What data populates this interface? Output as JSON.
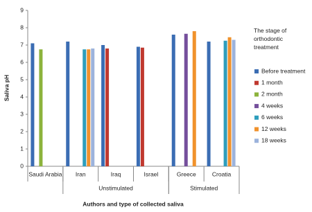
{
  "chart_data": {
    "type": "bar",
    "y_label": "Saliva pH",
    "x_label": "Authors and type of collected saliva",
    "legend_title": "The stage of orthodontic treatment",
    "legend_position": "right",
    "categories": [
      "Saudi Arabia",
      "Iran",
      "Iraq",
      "Israel",
      "Greece",
      "Croatia"
    ],
    "groups": [
      {
        "label": "Unstimulated",
        "from": "Iran",
        "to": "Israel"
      },
      {
        "label": "Stimulated",
        "from": "Greece",
        "to": "Croatia"
      }
    ],
    "series": [
      {
        "name": "Before treatment",
        "color": "#3b6db3",
        "values": [
          7.1,
          7.2,
          7.0,
          6.9,
          7.6,
          7.2
        ]
      },
      {
        "name": "1 month",
        "color": "#c0392f",
        "values": [
          null,
          null,
          6.8,
          6.85,
          null,
          null
        ]
      },
      {
        "name": "2 month",
        "color": "#8cb33c",
        "values": [
          6.75,
          null,
          null,
          null,
          null,
          null
        ]
      },
      {
        "name": "4 weeks",
        "color": "#754f9c",
        "values": [
          null,
          null,
          null,
          null,
          7.65,
          null
        ]
      },
      {
        "name": "6 weeks",
        "color": "#2e9ebc",
        "values": [
          null,
          6.75,
          null,
          null,
          null,
          7.25
        ]
      },
      {
        "name": "12 weeks",
        "color": "#f0922c",
        "values": [
          null,
          6.75,
          null,
          null,
          7.8,
          7.45
        ]
      },
      {
        "name": "18 weeks",
        "color": "#9cb3dc",
        "values": [
          null,
          6.8,
          null,
          null,
          null,
          7.3
        ]
      }
    ],
    "ylim": [
      0,
      9
    ],
    "yticks": [
      0,
      1,
      2,
      3,
      4,
      5,
      6,
      7,
      8,
      9
    ],
    "grid": false
  }
}
